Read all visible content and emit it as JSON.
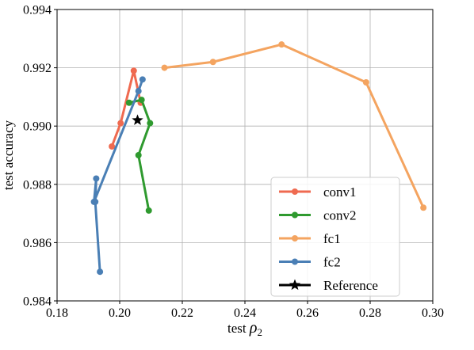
{
  "chart_data": {
    "type": "line",
    "xlabel_prefix": "test ",
    "xlabel_symbol": "ρ",
    "xlabel_subscript": "2",
    "ylabel": "test accuracy",
    "xlim": [
      0.18,
      0.3
    ],
    "ylim": [
      0.984,
      0.994
    ],
    "xticks": [
      "0.18",
      "0.20",
      "0.22",
      "0.24",
      "0.26",
      "0.28",
      "0.30"
    ],
    "yticks": [
      "0.984",
      "0.986",
      "0.988",
      "0.990",
      "0.992",
      "0.994"
    ],
    "xtick_values": [
      0.18,
      0.2,
      0.22,
      0.24,
      0.26,
      0.28,
      0.3
    ],
    "ytick_values": [
      0.984,
      0.986,
      0.988,
      0.99,
      0.992,
      0.994
    ],
    "grid": true,
    "legend_position": "lower-right",
    "series": [
      {
        "name": "conv1",
        "color": "#ef6a50",
        "points": [
          [
            0.1975,
            0.9893
          ],
          [
            0.2003,
            0.9901
          ],
          [
            0.2045,
            0.9919
          ],
          [
            0.2067,
            0.9908
          ]
        ]
      },
      {
        "name": "conv2",
        "color": "#2f9a2f",
        "points": [
          [
            0.2093,
            0.9871
          ],
          [
            0.206,
            0.989
          ],
          [
            0.2097,
            0.9901
          ],
          [
            0.207,
            0.9909
          ],
          [
            0.203,
            0.9908
          ]
        ]
      },
      {
        "name": "fc1",
        "color": "#f4a460",
        "points": [
          [
            0.2143,
            0.992
          ],
          [
            0.2298,
            0.9922
          ],
          [
            0.2517,
            0.9928
          ],
          [
            0.2787,
            0.9915
          ],
          [
            0.297,
            0.9872
          ]
        ]
      },
      {
        "name": "fc2",
        "color": "#4a7fb5",
        "points": [
          [
            0.1937,
            0.985
          ],
          [
            0.1922,
            0.9874
          ],
          [
            0.1925,
            0.9882
          ],
          [
            0.1918,
            0.9874
          ],
          [
            0.206,
            0.9912
          ],
          [
            0.2073,
            0.9916
          ]
        ]
      }
    ],
    "reference": {
      "name": "Reference",
      "marker": "star",
      "color": "#000000",
      "point": [
        0.2057,
        0.9902
      ]
    }
  }
}
